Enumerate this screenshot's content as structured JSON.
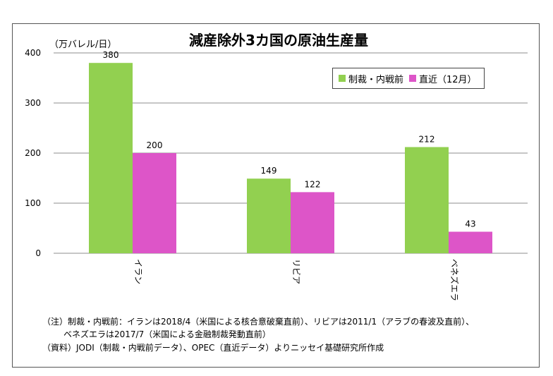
{
  "chart_data": {
    "type": "bar",
    "title": "減産除外3カ国の原油生産量",
    "unit_label": "（万バレル/日）",
    "categories": [
      "イラン",
      "リビア",
      "ベネズエラ"
    ],
    "series": [
      {
        "name": "制裁・内戦前",
        "values": [
          380,
          149,
          212
        ],
        "color": "#92d050"
      },
      {
        "name": "直近（12月）",
        "values": [
          200,
          122,
          43
        ],
        "color": "#dd55c8"
      }
    ],
    "ylim": [
      0,
      400
    ],
    "yticks": [
      0,
      100,
      200,
      300,
      400
    ],
    "grid": true,
    "legend_position": "top-right"
  },
  "notes": [
    "（注）制裁・内戦前：イランは2018/4（米国による核合意破棄直前）、リビアは2011/1（アラブの春波及直前）、",
    "ベネズエラは2017/7（米国による金融制裁発動直前）",
    "（資料）JODI（制裁・内戦前データ）、OPEC（直近データ）よりニッセイ基礎研究所作成"
  ]
}
